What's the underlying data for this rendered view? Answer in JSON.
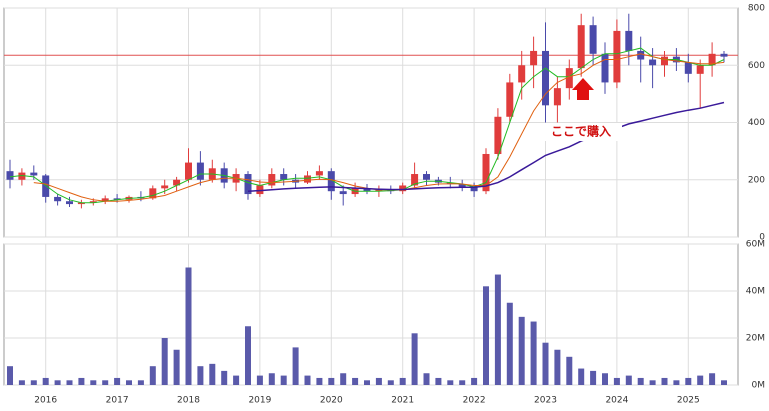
{
  "chart_data": {
    "type": "candlestick",
    "categories": [
      null,
      null,
      null,
      "2016",
      null,
      null,
      null,
      null,
      null,
      "2017",
      null,
      null,
      null,
      null,
      null,
      "2018",
      null,
      null,
      null,
      null,
      null,
      "2019",
      null,
      null,
      null,
      null,
      null,
      "2020",
      null,
      null,
      null,
      null,
      null,
      "2021",
      null,
      null,
      null,
      null,
      null,
      "2022",
      null,
      null,
      null,
      null,
      null,
      "2023",
      null,
      null,
      null,
      null,
      null,
      "2024",
      null,
      null,
      null,
      null,
      null,
      "2025",
      null,
      null,
      null
    ],
    "open": [
      230,
      200,
      225,
      215,
      140,
      125,
      115,
      120,
      125,
      135,
      130,
      140,
      135,
      170,
      180,
      200,
      260,
      200,
      240,
      190,
      220,
      150,
      180,
      220,
      200,
      190,
      215,
      230,
      160,
      150,
      170,
      160,
      165,
      160,
      180,
      220,
      200,
      190,
      185,
      175,
      160,
      290,
      420,
      540,
      600,
      650,
      460,
      520,
      590,
      740,
      640,
      540,
      720,
      650,
      620,
      600,
      630,
      610,
      570,
      600,
      640
    ],
    "high": [
      270,
      240,
      250,
      220,
      150,
      140,
      130,
      135,
      145,
      150,
      145,
      160,
      180,
      200,
      210,
      310,
      300,
      270,
      260,
      240,
      230,
      200,
      240,
      240,
      220,
      230,
      250,
      240,
      180,
      190,
      185,
      180,
      180,
      190,
      260,
      230,
      210,
      210,
      200,
      190,
      310,
      450,
      570,
      650,
      700,
      750,
      560,
      620,
      780,
      770,
      680,
      760,
      780,
      700,
      660,
      650,
      660,
      640,
      620,
      680,
      650
    ],
    "low": [
      170,
      180,
      200,
      120,
      110,
      105,
      100,
      110,
      115,
      120,
      120,
      125,
      130,
      150,
      160,
      190,
      180,
      190,
      170,
      160,
      130,
      140,
      170,
      180,
      170,
      185,
      200,
      130,
      110,
      140,
      150,
      140,
      150,
      150,
      170,
      180,
      180,
      170,
      160,
      140,
      150,
      270,
      400,
      480,
      520,
      400,
      400,
      480,
      560,
      600,
      500,
      520,
      600,
      540,
      520,
      560,
      580,
      540,
      450,
      560,
      610
    ],
    "close": [
      200,
      225,
      215,
      140,
      125,
      115,
      120,
      125,
      135,
      130,
      140,
      135,
      170,
      180,
      200,
      260,
      200,
      240,
      190,
      220,
      150,
      180,
      220,
      200,
      190,
      215,
      230,
      160,
      150,
      170,
      160,
      165,
      160,
      180,
      220,
      200,
      190,
      185,
      175,
      160,
      290,
      420,
      540,
      600,
      650,
      460,
      520,
      590,
      740,
      640,
      540,
      720,
      650,
      620,
      600,
      630,
      610,
      570,
      600,
      640,
      630
    ],
    "series": [
      {
        "color": "#22bb22",
        "values": [
          210,
          215,
          210,
          180,
          150,
          130,
          120,
          120,
          125,
          130,
          135,
          137,
          145,
          160,
          180,
          200,
          220,
          220,
          215,
          205,
          190,
          180,
          190,
          200,
          205,
          205,
          210,
          200,
          175,
          160,
          160,
          160,
          162,
          165,
          185,
          195,
          195,
          190,
          185,
          175,
          190,
          280,
          400,
          520,
          560,
          590,
          560,
          560,
          590,
          620,
          640,
          640,
          650,
          660,
          630,
          620,
          620,
          610,
          600,
          600,
          620
        ]
      },
      {
        "color": "#e06010",
        "values": [
          null,
          null,
          190,
          185,
          170,
          155,
          140,
          130,
          125,
          125,
          128,
          132,
          138,
          145,
          160,
          175,
          190,
          200,
          205,
          205,
          200,
          192,
          190,
          192,
          195,
          198,
          202,
          200,
          190,
          178,
          170,
          165,
          165,
          165,
          172,
          180,
          185,
          186,
          185,
          180,
          180,
          210,
          280,
          360,
          440,
          500,
          540,
          560,
          570,
          600,
          620,
          620,
          630,
          640,
          630,
          620,
          615,
          610,
          605,
          605,
          610
        ]
      },
      {
        "color": "#3a1a9a",
        "values": [
          null,
          null,
          null,
          null,
          null,
          null,
          null,
          null,
          null,
          null,
          null,
          null,
          null,
          null,
          null,
          null,
          null,
          null,
          null,
          null,
          160,
          162,
          165,
          168,
          170,
          172,
          174,
          175,
          173,
          171,
          169,
          167,
          166,
          166,
          168,
          170,
          172,
          173,
          174,
          174,
          178,
          190,
          210,
          235,
          260,
          285,
          300,
          315,
          335,
          350,
          365,
          380,
          395,
          405,
          415,
          425,
          435,
          443,
          450,
          460,
          470
        ]
      }
    ],
    "hline": 635,
    "hline_color": "#e05050",
    "up_color": "#e03c3c",
    "down_color": "#4a4aaa",
    "ylim": [
      0,
      800
    ],
    "yticks": [
      0,
      200,
      400,
      600,
      800
    ],
    "annotation": "ここで購入",
    "volume": {
      "color": "#5a5aaa",
      "values": [
        8000000,
        2000000,
        2000000,
        3000000,
        2000000,
        2000000,
        3000000,
        2000000,
        2000000,
        3000000,
        2000000,
        2000000,
        8000000,
        20000000,
        15000000,
        50000000,
        8000000,
        9000000,
        6000000,
        4000000,
        25000000,
        4000000,
        5000000,
        4000000,
        16000000,
        4000000,
        3000000,
        3000000,
        5000000,
        3000000,
        2000000,
        3000000,
        2000000,
        3000000,
        22000000,
        5000000,
        3000000,
        2000000,
        2000000,
        3000000,
        42000000,
        47000000,
        35000000,
        29000000,
        27000000,
        18000000,
        15000000,
        12000000,
        7000000,
        6000000,
        5000000,
        3000000,
        4000000,
        3000000,
        2000000,
        3000000,
        2000000,
        3000000,
        4000000,
        5000000,
        2000000
      ],
      "ylim": [
        0,
        60000000
      ],
      "yticks": [
        {
          "value": 0,
          "label": "0M"
        },
        {
          "value": 20000000,
          "label": "20M"
        },
        {
          "value": 40000000,
          "label": "40M"
        },
        {
          "value": 60000000,
          "label": "60M"
        }
      ]
    },
    "grid": true
  }
}
